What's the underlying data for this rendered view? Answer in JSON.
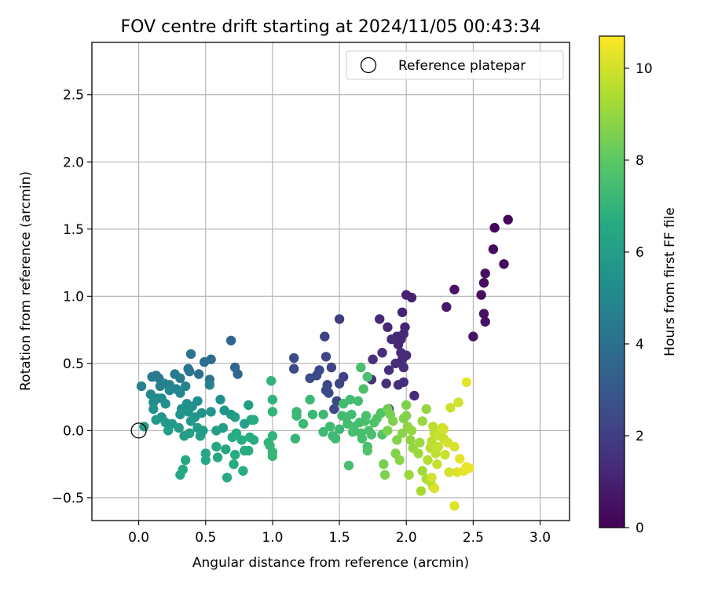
{
  "chart_data": {
    "type": "scatter",
    "title": "FOV centre drift starting at 2024/11/05 00:43:34",
    "xlabel": "Angular distance from reference (arcmin)",
    "ylabel": "Rotation from reference (arcmin)",
    "xlim": [
      -0.35,
      3.22
    ],
    "ylim": [
      -0.67,
      2.89
    ],
    "xticks": [
      0.0,
      0.5,
      1.0,
      1.5,
      2.0,
      2.5,
      3.0
    ],
    "xtick_labels": [
      "0.0",
      "0.5",
      "1.0",
      "1.5",
      "2.0",
      "2.5",
      "3.0"
    ],
    "yticks": [
      -0.5,
      0.0,
      0.5,
      1.0,
      1.5,
      2.0,
      2.5
    ],
    "ytick_labels": [
      "−0.5",
      "0.0",
      "0.5",
      "1.0",
      "1.5",
      "2.0",
      "2.5"
    ],
    "grid": true,
    "legend": {
      "position": "top-right",
      "label": "Reference platepar"
    },
    "reference_point": {
      "x": 0.0,
      "y": 0.0
    },
    "colorbar": {
      "label": "Hours from first FF file",
      "colormap": "viridis",
      "range": [
        0,
        10.7
      ],
      "ticks": [
        0,
        2,
        4,
        6,
        8,
        10
      ],
      "tick_labels": [
        "0",
        "2",
        "4",
        "6",
        "8",
        "10"
      ]
    },
    "points": [
      {
        "x": 2.76,
        "y": 1.57,
        "c": 0.1
      },
      {
        "x": 2.66,
        "y": 1.51,
        "c": 0.2
      },
      {
        "x": 2.65,
        "y": 1.35,
        "c": 0.3
      },
      {
        "x": 2.73,
        "y": 1.24,
        "c": 0.2
      },
      {
        "x": 2.59,
        "y": 1.17,
        "c": 0.4
      },
      {
        "x": 2.58,
        "y": 1.1,
        "c": 0.4
      },
      {
        "x": 2.36,
        "y": 1.05,
        "c": 0.6
      },
      {
        "x": 2.56,
        "y": 1.01,
        "c": 0.4
      },
      {
        "x": 2.3,
        "y": 0.92,
        "c": 0.7
      },
      {
        "x": 2.58,
        "y": 0.87,
        "c": 0.5
      },
      {
        "x": 2.59,
        "y": 0.81,
        "c": 0.5
      },
      {
        "x": 2.5,
        "y": 0.7,
        "c": 0.6
      },
      {
        "x": 2.0,
        "y": 1.01,
        "c": 1.0
      },
      {
        "x": 2.04,
        "y": 0.99,
        "c": 1.0
      },
      {
        "x": 1.97,
        "y": 0.88,
        "c": 1.1
      },
      {
        "x": 1.8,
        "y": 0.83,
        "c": 1.3
      },
      {
        "x": 1.86,
        "y": 0.77,
        "c": 1.2
      },
      {
        "x": 1.99,
        "y": 0.77,
        "c": 1.1
      },
      {
        "x": 1.98,
        "y": 0.72,
        "c": 1.2
      },
      {
        "x": 1.93,
        "y": 0.7,
        "c": 1.2
      },
      {
        "x": 1.96,
        "y": 0.68,
        "c": 1.2
      },
      {
        "x": 1.89,
        "y": 0.68,
        "c": 1.3
      },
      {
        "x": 1.94,
        "y": 0.64,
        "c": 1.2
      },
      {
        "x": 1.82,
        "y": 0.58,
        "c": 1.4
      },
      {
        "x": 1.96,
        "y": 0.58,
        "c": 1.3
      },
      {
        "x": 2.0,
        "y": 0.56,
        "c": 1.3
      },
      {
        "x": 1.97,
        "y": 0.53,
        "c": 1.3
      },
      {
        "x": 1.75,
        "y": 0.53,
        "c": 1.5
      },
      {
        "x": 1.92,
        "y": 0.5,
        "c": 1.4
      },
      {
        "x": 1.98,
        "y": 0.47,
        "c": 1.4
      },
      {
        "x": 1.87,
        "y": 0.45,
        "c": 1.4
      },
      {
        "x": 1.74,
        "y": 0.38,
        "c": 1.6
      },
      {
        "x": 1.85,
        "y": 0.35,
        "c": 1.5
      },
      {
        "x": 1.98,
        "y": 0.36,
        "c": 1.4
      },
      {
        "x": 1.94,
        "y": 0.34,
        "c": 1.5
      },
      {
        "x": 2.06,
        "y": 0.26,
        "c": 1.3
      },
      {
        "x": 1.87,
        "y": 0.16,
        "c": 1.6
      },
      {
        "x": 1.5,
        "y": 0.83,
        "c": 2.0
      },
      {
        "x": 1.39,
        "y": 0.7,
        "c": 2.1
      },
      {
        "x": 1.4,
        "y": 0.55,
        "c": 2.2
      },
      {
        "x": 1.16,
        "y": 0.54,
        "c": 2.5
      },
      {
        "x": 1.16,
        "y": 0.46,
        "c": 2.5
      },
      {
        "x": 1.44,
        "y": 0.47,
        "c": 2.2
      },
      {
        "x": 1.35,
        "y": 0.45,
        "c": 2.4
      },
      {
        "x": 1.33,
        "y": 0.41,
        "c": 2.4
      },
      {
        "x": 1.28,
        "y": 0.39,
        "c": 2.5
      },
      {
        "x": 1.53,
        "y": 0.4,
        "c": 2.1
      },
      {
        "x": 1.41,
        "y": 0.34,
        "c": 2.3
      },
      {
        "x": 1.5,
        "y": 0.35,
        "c": 2.2
      },
      {
        "x": 1.4,
        "y": 0.3,
        "c": 2.4
      },
      {
        "x": 1.42,
        "y": 0.28,
        "c": 2.4
      },
      {
        "x": 1.48,
        "y": 0.22,
        "c": 2.3
      },
      {
        "x": 1.46,
        "y": 0.16,
        "c": 2.4
      },
      {
        "x": 0.69,
        "y": 0.67,
        "c": 3.5
      },
      {
        "x": 0.39,
        "y": 0.57,
        "c": 4.0
      },
      {
        "x": 0.54,
        "y": 0.53,
        "c": 3.8
      },
      {
        "x": 0.49,
        "y": 0.51,
        "c": 3.9
      },
      {
        "x": 0.72,
        "y": 0.47,
        "c": 3.6
      },
      {
        "x": 0.37,
        "y": 0.46,
        "c": 4.1
      },
      {
        "x": 0.38,
        "y": 0.44,
        "c": 4.1
      },
      {
        "x": 0.45,
        "y": 0.42,
        "c": 4.0
      },
      {
        "x": 0.74,
        "y": 0.42,
        "c": 3.6
      },
      {
        "x": 0.1,
        "y": 0.4,
        "c": 4.4
      },
      {
        "x": 0.13,
        "y": 0.41,
        "c": 4.4
      },
      {
        "x": 0.15,
        "y": 0.39,
        "c": 4.4
      },
      {
        "x": 0.27,
        "y": 0.42,
        "c": 4.5
      },
      {
        "x": 0.31,
        "y": 0.39,
        "c": 4.5
      },
      {
        "x": 0.53,
        "y": 0.38,
        "c": 4.2
      },
      {
        "x": 0.19,
        "y": 0.35,
        "c": 4.6
      },
      {
        "x": 0.23,
        "y": 0.34,
        "c": 4.6
      },
      {
        "x": 0.16,
        "y": 0.33,
        "c": 4.7
      },
      {
        "x": 0.02,
        "y": 0.33,
        "c": 4.7
      },
      {
        "x": 0.35,
        "y": 0.33,
        "c": 4.8
      },
      {
        "x": 0.53,
        "y": 0.34,
        "c": 4.7
      },
      {
        "x": 0.28,
        "y": 0.31,
        "c": 4.9
      },
      {
        "x": 0.23,
        "y": 0.3,
        "c": 4.9
      },
      {
        "x": 0.31,
        "y": 0.28,
        "c": 5.0
      },
      {
        "x": 0.14,
        "y": 0.24,
        "c": 5.1
      },
      {
        "x": 0.17,
        "y": 0.24,
        "c": 5.1
      },
      {
        "x": 0.09,
        "y": 0.27,
        "c": 5.0
      },
      {
        "x": 0.61,
        "y": 0.23,
        "c": 5.3
      },
      {
        "x": 0.44,
        "y": 0.22,
        "c": 5.2
      },
      {
        "x": 0.11,
        "y": 0.21,
        "c": 5.2
      },
      {
        "x": 0.2,
        "y": 0.2,
        "c": 5.3
      },
      {
        "x": 0.36,
        "y": 0.2,
        "c": 5.3
      },
      {
        "x": 0.4,
        "y": 0.18,
        "c": 5.4
      },
      {
        "x": 0.32,
        "y": 0.16,
        "c": 5.4
      },
      {
        "x": 0.11,
        "y": 0.16,
        "c": 5.5
      },
      {
        "x": 0.37,
        "y": 0.14,
        "c": 5.5
      },
      {
        "x": 0.47,
        "y": 0.13,
        "c": 5.5
      },
      {
        "x": 0.54,
        "y": 0.14,
        "c": 5.6
      },
      {
        "x": 0.31,
        "y": 0.12,
        "c": 5.6
      },
      {
        "x": 0.17,
        "y": 0.1,
        "c": 5.6
      },
      {
        "x": 0.13,
        "y": 0.08,
        "c": 5.7
      },
      {
        "x": 0.42,
        "y": 0.1,
        "c": 5.6
      },
      {
        "x": 0.64,
        "y": 0.15,
        "c": 5.6
      },
      {
        "x": 0.69,
        "y": 0.12,
        "c": 5.7
      },
      {
        "x": 0.25,
        "y": 0.05,
        "c": 5.8
      },
      {
        "x": 0.2,
        "y": 0.06,
        "c": 5.8
      },
      {
        "x": 0.39,
        "y": 0.07,
        "c": 5.8
      },
      {
        "x": 0.04,
        "y": 0.03,
        "c": 5.9
      },
      {
        "x": 0.3,
        "y": 0.02,
        "c": 5.9
      },
      {
        "x": 0.44,
        "y": 0.02,
        "c": 5.9
      },
      {
        "x": 0.48,
        "y": 0.0,
        "c": 5.9
      },
      {
        "x": 0.22,
        "y": 0.0,
        "c": 6.0
      },
      {
        "x": 0.38,
        "y": -0.02,
        "c": 6.0
      },
      {
        "x": 0.34,
        "y": -0.04,
        "c": 6.0
      },
      {
        "x": 0.46,
        "y": -0.04,
        "c": 6.0
      },
      {
        "x": 0.58,
        "y": 0.0,
        "c": 6.0
      },
      {
        "x": 0.63,
        "y": 0.02,
        "c": 6.0
      },
      {
        "x": 0.72,
        "y": 0.1,
        "c": 5.9
      },
      {
        "x": 0.79,
        "y": 0.05,
        "c": 6.1
      },
      {
        "x": 0.82,
        "y": 0.19,
        "c": 6.0
      },
      {
        "x": 0.84,
        "y": 0.08,
        "c": 6.3
      },
      {
        "x": 0.58,
        "y": -0.12,
        "c": 6.3
      },
      {
        "x": 0.65,
        "y": -0.14,
        "c": 6.3
      },
      {
        "x": 0.5,
        "y": -0.17,
        "c": 6.4
      },
      {
        "x": 0.5,
        "y": -0.22,
        "c": 6.4
      },
      {
        "x": 0.59,
        "y": -0.2,
        "c": 6.4
      },
      {
        "x": 0.35,
        "y": -0.22,
        "c": 6.5
      },
      {
        "x": 0.33,
        "y": -0.29,
        "c": 6.5
      },
      {
        "x": 0.31,
        "y": -0.33,
        "c": 6.5
      },
      {
        "x": 0.66,
        "y": -0.35,
        "c": 6.5
      },
      {
        "x": 0.71,
        "y": -0.25,
        "c": 6.6
      },
      {
        "x": 0.72,
        "y": -0.18,
        "c": 6.6
      },
      {
        "x": 0.7,
        "y": -0.05,
        "c": 6.6
      },
      {
        "x": 0.73,
        "y": -0.02,
        "c": 6.6
      },
      {
        "x": 0.77,
        "y": -0.07,
        "c": 6.6
      },
      {
        "x": 0.79,
        "y": -0.15,
        "c": 6.7
      },
      {
        "x": 0.78,
        "y": -0.3,
        "c": 6.7
      },
      {
        "x": 0.82,
        "y": -0.15,
        "c": 6.7
      },
      {
        "x": 0.83,
        "y": -0.05,
        "c": 6.7
      },
      {
        "x": 0.86,
        "y": -0.07,
        "c": 6.7
      },
      {
        "x": 0.86,
        "y": 0.08,
        "c": 6.7
      },
      {
        "x": 0.99,
        "y": 0.37,
        "c": 7.0
      },
      {
        "x": 1.0,
        "y": 0.23,
        "c": 7.0
      },
      {
        "x": 1.0,
        "y": 0.14,
        "c": 7.0
      },
      {
        "x": 0.97,
        "y": -0.09,
        "c": 7.0
      },
      {
        "x": 1.0,
        "y": -0.04,
        "c": 7.0
      },
      {
        "x": 1.0,
        "y": -0.16,
        "c": 7.1
      },
      {
        "x": 0.98,
        "y": -0.11,
        "c": 7.1
      },
      {
        "x": 1.0,
        "y": -0.19,
        "c": 7.1
      },
      {
        "x": 1.17,
        "y": -0.06,
        "c": 7.1
      },
      {
        "x": 1.18,
        "y": 0.14,
        "c": 7.2
      },
      {
        "x": 1.18,
        "y": 0.11,
        "c": 7.2
      },
      {
        "x": 1.23,
        "y": 0.05,
        "c": 7.2
      },
      {
        "x": 1.28,
        "y": 0.23,
        "c": 7.2
      },
      {
        "x": 1.3,
        "y": 0.12,
        "c": 7.2
      },
      {
        "x": 1.38,
        "y": 0.12,
        "c": 7.3
      },
      {
        "x": 1.38,
        "y": -0.01,
        "c": 7.3
      },
      {
        "x": 1.43,
        "y": 0.03,
        "c": 7.3
      },
      {
        "x": 1.45,
        "y": -0.04,
        "c": 7.3
      },
      {
        "x": 1.47,
        "y": -0.06,
        "c": 7.3
      },
      {
        "x": 1.5,
        "y": 0.01,
        "c": 7.3
      },
      {
        "x": 1.52,
        "y": 0.11,
        "c": 7.4
      },
      {
        "x": 1.53,
        "y": 0.2,
        "c": 7.4
      },
      {
        "x": 1.55,
        "y": 0.1,
        "c": 7.4
      },
      {
        "x": 1.56,
        "y": 0.05,
        "c": 7.4
      },
      {
        "x": 1.58,
        "y": 0.23,
        "c": 7.4
      },
      {
        "x": 1.59,
        "y": 0.12,
        "c": 7.4
      },
      {
        "x": 1.6,
        "y": -0.01,
        "c": 7.5
      },
      {
        "x": 1.61,
        "y": 0.03,
        "c": 7.5
      },
      {
        "x": 1.64,
        "y": 0.22,
        "c": 7.5
      },
      {
        "x": 1.65,
        "y": 0.06,
        "c": 7.5
      },
      {
        "x": 1.66,
        "y": -0.02,
        "c": 7.5
      },
      {
        "x": 1.67,
        "y": -0.06,
        "c": 7.5
      },
      {
        "x": 1.69,
        "y": 0.07,
        "c": 7.6
      },
      {
        "x": 1.7,
        "y": 0.11,
        "c": 7.6
      },
      {
        "x": 1.71,
        "y": -0.12,
        "c": 7.6
      },
      {
        "x": 1.72,
        "y": 0.0,
        "c": 7.6
      },
      {
        "x": 1.74,
        "y": -0.03,
        "c": 7.6
      },
      {
        "x": 1.57,
        "y": -0.26,
        "c": 7.5
      },
      {
        "x": 1.66,
        "y": 0.47,
        "c": 7.6
      },
      {
        "x": 1.71,
        "y": 0.4,
        "c": 7.6
      },
      {
        "x": 1.68,
        "y": 0.31,
        "c": 7.7
      },
      {
        "x": 1.71,
        "y": -0.15,
        "c": 7.7
      },
      {
        "x": 1.76,
        "y": 0.06,
        "c": 7.7
      },
      {
        "x": 1.78,
        "y": 0.09,
        "c": 7.7
      },
      {
        "x": 1.81,
        "y": 0.13,
        "c": 7.8
      },
      {
        "x": 1.82,
        "y": -0.03,
        "c": 7.8
      },
      {
        "x": 1.83,
        "y": -0.25,
        "c": 8.5
      },
      {
        "x": 1.84,
        "y": -0.33,
        "c": 8.6
      },
      {
        "x": 1.86,
        "y": 0.16,
        "c": 8.4
      },
      {
        "x": 1.88,
        "y": 0.12,
        "c": 8.5
      },
      {
        "x": 1.86,
        "y": 0.0,
        "c": 8.6
      },
      {
        "x": 1.9,
        "y": 0.07,
        "c": 8.6
      },
      {
        "x": 1.92,
        "y": -0.17,
        "c": 8.7
      },
      {
        "x": 1.93,
        "y": -0.07,
        "c": 8.7
      },
      {
        "x": 1.95,
        "y": -0.22,
        "c": 8.8
      },
      {
        "x": 1.97,
        "y": -0.02,
        "c": 8.8
      },
      {
        "x": 1.98,
        "y": 0.09,
        "c": 8.7
      },
      {
        "x": 2.0,
        "y": 0.19,
        "c": 8.6
      },
      {
        "x": 2.0,
        "y": 0.11,
        "c": 8.7
      },
      {
        "x": 2.01,
        "y": 0.03,
        "c": 8.9
      },
      {
        "x": 2.03,
        "y": -0.07,
        "c": 8.9
      },
      {
        "x": 2.04,
        "y": 0.0,
        "c": 9.0
      },
      {
        "x": 2.05,
        "y": -0.13,
        "c": 9.0
      },
      {
        "x": 2.02,
        "y": -0.33,
        "c": 9.1
      },
      {
        "x": 2.09,
        "y": -0.17,
        "c": 9.1
      },
      {
        "x": 2.1,
        "y": -0.09,
        "c": 9.1
      },
      {
        "x": 2.12,
        "y": 0.07,
        "c": 9.0
      },
      {
        "x": 2.15,
        "y": 0.16,
        "c": 9.0
      },
      {
        "x": 2.12,
        "y": -0.3,
        "c": 9.2
      },
      {
        "x": 2.11,
        "y": -0.45,
        "c": 9.3
      },
      {
        "x": 2.15,
        "y": -0.36,
        "c": 9.4
      },
      {
        "x": 2.18,
        "y": -0.38,
        "c": 9.5
      },
      {
        "x": 2.2,
        "y": -0.42,
        "c": 9.6
      },
      {
        "x": 2.16,
        "y": -0.22,
        "c": 9.5
      },
      {
        "x": 2.18,
        "y": -0.13,
        "c": 9.6
      },
      {
        "x": 2.19,
        "y": -0.08,
        "c": 9.6
      },
      {
        "x": 2.21,
        "y": -0.02,
        "c": 9.7
      },
      {
        "x": 2.2,
        "y": 0.03,
        "c": 9.7
      },
      {
        "x": 2.22,
        "y": -0.17,
        "c": 9.7
      },
      {
        "x": 2.23,
        "y": -0.25,
        "c": 9.8
      },
      {
        "x": 2.24,
        "y": -0.12,
        "c": 9.8
      },
      {
        "x": 2.25,
        "y": -0.04,
        "c": 9.8
      },
      {
        "x": 2.27,
        "y": 0.02,
        "c": 9.9
      },
      {
        "x": 2.28,
        "y": -0.06,
        "c": 9.9
      },
      {
        "x": 2.29,
        "y": -0.18,
        "c": 9.9
      },
      {
        "x": 2.31,
        "y": -0.09,
        "c": 10.0
      },
      {
        "x": 2.32,
        "y": -0.31,
        "c": 10.0
      },
      {
        "x": 2.33,
        "y": 0.17,
        "c": 9.9
      },
      {
        "x": 2.36,
        "y": -0.12,
        "c": 10.1
      },
      {
        "x": 2.36,
        "y": -0.56,
        "c": 10.2
      },
      {
        "x": 2.38,
        "y": -0.31,
        "c": 10.2
      },
      {
        "x": 2.39,
        "y": 0.21,
        "c": 10.0
      },
      {
        "x": 2.4,
        "y": -0.21,
        "c": 10.3
      },
      {
        "x": 2.43,
        "y": -0.3,
        "c": 10.3
      },
      {
        "x": 2.45,
        "y": -0.27,
        "c": 10.4
      },
      {
        "x": 2.45,
        "y": 0.36,
        "c": 10.3
      },
      {
        "x": 2.47,
        "y": -0.28,
        "c": 10.4
      },
      {
        "x": 2.21,
        "y": -0.43,
        "c": 10.1
      },
      {
        "x": 2.19,
        "y": -0.35,
        "c": 10.0
      },
      {
        "x": 2.28,
        "y": 0.01,
        "c": 10.0
      }
    ]
  }
}
